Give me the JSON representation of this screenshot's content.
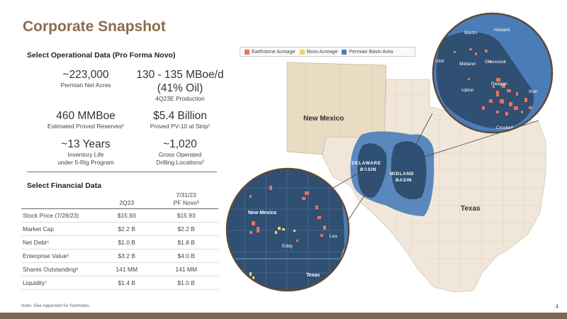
{
  "title": "Corporate Snapshot",
  "operational": {
    "heading": "Select Operational Data (Pro Forma Novo)",
    "metrics": [
      {
        "value": "~223,000",
        "label": "Permian Net Acres"
      },
      {
        "value": "130 - 135 MBoe/d",
        "value2": "(41% Oil)",
        "label": "4Q23E Production"
      },
      {
        "value": "460 MMBoe",
        "label": "Estimated Proved Reserves¹"
      },
      {
        "value": "$5.4 Billion",
        "label": "Proved PV-10 at Strip¹"
      },
      {
        "value": "~13 Years",
        "label": "Inventory Life",
        "label2": "under 5-Rig Program"
      },
      {
        "value": "~1,020",
        "label": "Gross Operated",
        "label2": "Drilling Locations²"
      }
    ]
  },
  "financial": {
    "heading": "Select Financial Data",
    "col1": "2Q23",
    "col2_line1": "7/31/23",
    "col2_line2": "PF Novo³",
    "rows": [
      {
        "label": "Stock Price (7/28/23)",
        "a": "$15.93",
        "b": "$15.93"
      },
      {
        "label": "Market Cap",
        "a": "$2.2 B",
        "b": "$2.2 B"
      },
      {
        "label": "Net Debt⁴",
        "a": "$1.0 B",
        "b": "$1.8 B"
      },
      {
        "label": "Enterprise Value⁵",
        "a": "$3.2 B",
        "b": "$4.0 B"
      },
      {
        "label": "Shares Outstanding⁶",
        "a": "141 MM",
        "b": "141 MM"
      },
      {
        "label": "Liquidity⁷",
        "a": "$1.4 B",
        "b": "$1.0 B"
      }
    ]
  },
  "note": "Note:  See Appendix for footnotes.",
  "page_number": "4",
  "legend": [
    {
      "label": "Earthstone Acreage",
      "color": "#e8735a"
    },
    {
      "label": "Novo Acreage",
      "color": "#f2d56b"
    },
    {
      "label": "Permian Basin Area",
      "color": "#4a7db8"
    }
  ],
  "map": {
    "new_mexico": "New Mexico",
    "texas": "Texas",
    "delaware_1": "DELAWARE",
    "delaware_2": "BASIN",
    "midland_1": "MIDLAND",
    "midland_2": "BASIN",
    "zoom_right": {
      "martin": "Martin",
      "howard": "Howard",
      "ector": "Ector",
      "midland": "Midland",
      "glasscock": "Glasscock",
      "upton": "Upton",
      "reagan": "Reagan",
      "irion": "Irion",
      "crockett": "Crockett"
    },
    "zoom_left": {
      "new_mexico": "New Mexico",
      "lea": "Lea",
      "eddy": "Eddy",
      "texas": "Texas"
    }
  },
  "colors": {
    "brand_brown": "#8b6c4e",
    "nm_fill": "#e9dcc3",
    "tx_fill": "#f1e6da",
    "basin_fill": "#4a7db8",
    "basin_dark": "#2f4f73"
  }
}
